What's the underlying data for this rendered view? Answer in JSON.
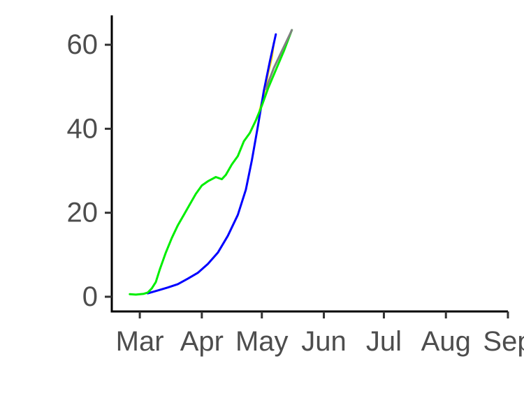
{
  "chart_data": {
    "type": "line",
    "title": "",
    "xlabel": "",
    "ylabel": "",
    "x_ticks": [
      {
        "date": "2020-03-01",
        "label": "Mar"
      },
      {
        "date": "2020-04-01",
        "label": "Apr"
      },
      {
        "date": "2020-05-01",
        "label": "May"
      },
      {
        "date": "2020-06-01",
        "label": "Jun"
      },
      {
        "date": "2020-07-01",
        "label": "Jul"
      },
      {
        "date": "2020-08-01",
        "label": "Aug"
      },
      {
        "date": "2020-09-01",
        "label": "Sep"
      }
    ],
    "y_ticks": [
      0,
      20,
      40,
      60
    ],
    "xlim": [
      "2020-02-16",
      "2020-09-01"
    ],
    "ylim": [
      -3.5,
      67
    ],
    "grid": false,
    "series": [
      {
        "color": "#ffd700",
        "points": [
          {
            "x": "2020-04-30",
            "y": 44.5
          },
          {
            "x": "2020-05-02",
            "y": 48
          },
          {
            "x": "2020-05-04",
            "y": 53
          },
          {
            "x": "2020-05-06",
            "y": 57
          },
          {
            "x": "2020-05-07",
            "y": 60.5
          }
        ]
      },
      {
        "color": "#0000ff",
        "points": [
          {
            "x": "2020-03-05",
            "y": 0.8
          },
          {
            "x": "2020-03-10",
            "y": 1.5
          },
          {
            "x": "2020-03-15",
            "y": 2.2
          },
          {
            "x": "2020-03-20",
            "y": 3.0
          },
          {
            "x": "2020-03-25",
            "y": 4.3
          },
          {
            "x": "2020-03-30",
            "y": 5.7
          },
          {
            "x": "2020-04-04",
            "y": 7.8
          },
          {
            "x": "2020-04-09",
            "y": 10.5
          },
          {
            "x": "2020-04-14",
            "y": 14.5
          },
          {
            "x": "2020-04-19",
            "y": 19.5
          },
          {
            "x": "2020-04-23",
            "y": 25.5
          },
          {
            "x": "2020-04-26",
            "y": 32.5
          },
          {
            "x": "2020-04-29",
            "y": 40.5
          },
          {
            "x": "2020-05-02",
            "y": 49
          },
          {
            "x": "2020-05-05",
            "y": 56
          },
          {
            "x": "2020-05-08",
            "y": 62.5
          }
        ]
      },
      {
        "color": "#00ee00",
        "points": [
          {
            "x": "2020-02-25",
            "y": 0.6
          },
          {
            "x": "2020-02-28",
            "y": 0.5
          },
          {
            "x": "2020-03-03",
            "y": 0.7
          },
          {
            "x": "2020-03-05",
            "y": 1.0
          },
          {
            "x": "2020-03-07",
            "y": 2.0
          },
          {
            "x": "2020-03-09",
            "y": 3.5
          },
          {
            "x": "2020-03-11",
            "y": 6.5
          },
          {
            "x": "2020-03-14",
            "y": 10.5
          },
          {
            "x": "2020-03-17",
            "y": 14.0
          },
          {
            "x": "2020-03-20",
            "y": 17.0
          },
          {
            "x": "2020-03-23",
            "y": 19.5
          },
          {
            "x": "2020-03-26",
            "y": 22.0
          },
          {
            "x": "2020-03-29",
            "y": 24.5
          },
          {
            "x": "2020-04-01",
            "y": 26.5
          },
          {
            "x": "2020-04-04",
            "y": 27.5
          },
          {
            "x": "2020-04-08",
            "y": 28.5
          },
          {
            "x": "2020-04-11",
            "y": 28.0
          },
          {
            "x": "2020-04-13",
            "y": 29.0
          },
          {
            "x": "2020-04-16",
            "y": 31.5
          },
          {
            "x": "2020-04-19",
            "y": 33.5
          },
          {
            "x": "2020-04-22",
            "y": 37.0
          },
          {
            "x": "2020-04-25",
            "y": 39.0
          },
          {
            "x": "2020-04-28",
            "y": 42.0
          },
          {
            "x": "2020-05-01",
            "y": 45.5
          },
          {
            "x": "2020-05-04",
            "y": 49.5
          },
          {
            "x": "2020-05-08",
            "y": 54.0
          },
          {
            "x": "2020-05-12",
            "y": 58.5
          },
          {
            "x": "2020-05-16",
            "y": 63.5
          }
        ]
      },
      {
        "color": "#808080",
        "points": [
          {
            "x": "2020-05-03",
            "y": 49.5
          },
          {
            "x": "2020-05-07",
            "y": 54.5
          },
          {
            "x": "2020-05-11",
            "y": 58.5
          },
          {
            "x": "2020-05-15",
            "y": 62.5
          },
          {
            "x": "2020-05-16",
            "y": 63.5
          }
        ]
      }
    ]
  }
}
